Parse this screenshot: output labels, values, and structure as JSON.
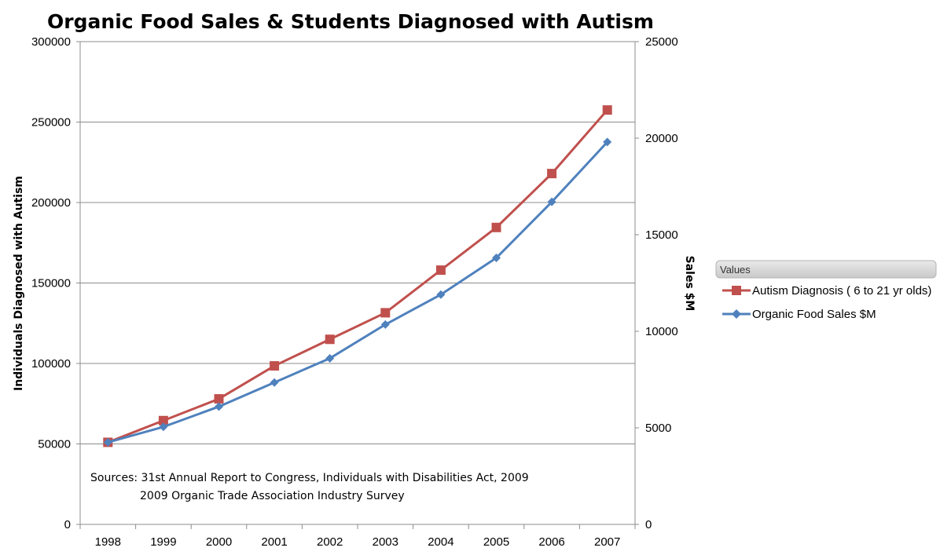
{
  "chart_data": {
    "type": "line",
    "title": "Organic Food Sales & Students Diagnosed with Autism",
    "categories": [
      "1998",
      "1999",
      "2000",
      "2001",
      "2002",
      "2003",
      "2004",
      "2005",
      "2006",
      "2007"
    ],
    "y_left": {
      "label": "Individuals Diagnosed with Autism",
      "range": [
        0,
        300000
      ],
      "ticks": [
        "0",
        "50000",
        "100000",
        "150000",
        "200000",
        "250000",
        "300000"
      ]
    },
    "y_right": {
      "label": "Sales $M",
      "range": [
        0,
        25000
      ],
      "ticks": [
        "0",
        "5000",
        "10000",
        "15000",
        "20000",
        "25000"
      ]
    },
    "series": [
      {
        "name": "Autism Diagnosis ( 6 to 21 yr olds)",
        "axis": "left",
        "color": "#C0504D",
        "marker": "square",
        "values": [
          51000,
          64500,
          78000,
          98500,
          115000,
          131500,
          158000,
          184500,
          218000,
          257500
        ]
      },
      {
        "name": "Organic Food Sales $M",
        "axis": "right",
        "color": "#4F81BD",
        "marker": "diamond",
        "values": [
          4250,
          5050,
          6100,
          7350,
          8600,
          10350,
          11900,
          13800,
          16700,
          19800
        ]
      }
    ],
    "grid": true,
    "legend": {
      "title": "Values",
      "position": "right"
    },
    "annotations": [
      "Sources: 31st Annual  Report to Congress, Individuals with Disabilities Act, 2009",
      "2009 Organic Trade Association Industry Survey"
    ]
  }
}
